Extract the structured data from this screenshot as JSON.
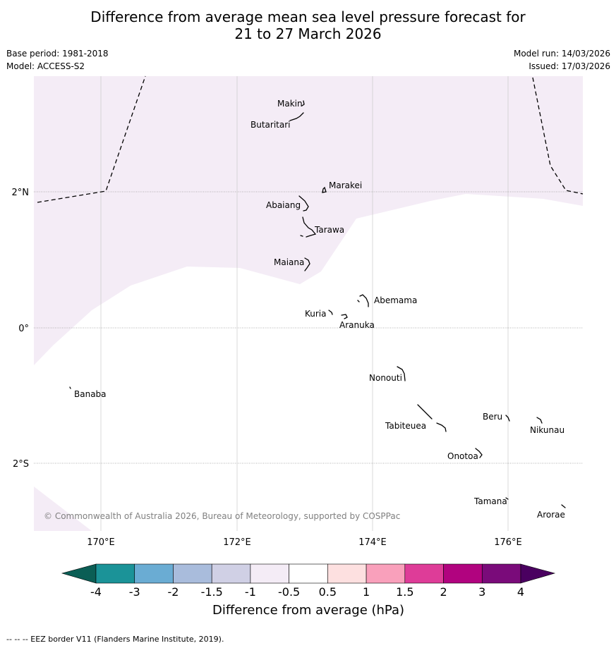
{
  "title_line1": "Difference from average mean sea level pressure forecast for",
  "title_line2": "21 to 27 March 2026",
  "base_period": "Base period: 1981-2018",
  "model": "Model: ACCESS-S2",
  "model_run": "Model run: 14/03/2026",
  "issued": "Issued: 17/03/2026",
  "copyright": "© Commonwealth of Australia 2026, Bureau of Meteorology, supported by COSPPac",
  "footer": "-- -- -- EEZ border V11 (Flanders Marine Institute, 2019).",
  "lon_ticks": [
    "170°E",
    "172°E",
    "174°E",
    "176°E"
  ],
  "lat_ticks": [
    "2°N",
    "0°",
    "2°S"
  ],
  "islands": {
    "makin": "Makin",
    "butaritari": "Butaritari",
    "marakei": "Marakei",
    "abaiang": "Abaiang",
    "tarawa": "Tarawa",
    "maiana": "Maiana",
    "abemama": "Abemama",
    "kuria": "Kuria",
    "aranuka": "Aranuka",
    "banaba": "Banaba",
    "nonouti": "Nonouti",
    "tabiteuea": "Tabiteuea",
    "beru": "Beru",
    "nikunau": "Nikunau",
    "onotoa": "Onotoa",
    "tamana": "Tamana",
    "arorae": "Arorae"
  },
  "colorbar": {
    "label": "Difference from average (hPa)",
    "ticks": [
      "-4",
      "-3",
      "-2",
      "-1.5",
      "-1",
      "-0.5",
      "0.5",
      "1",
      "1.5",
      "2",
      "3",
      "4"
    ],
    "colors": {
      "under": "#0b5e55",
      "c1": "#1b9398",
      "c2": "#6aacd3",
      "c3": "#a9bcdc",
      "c4": "#d0d0e5",
      "c5": "#f4ecf6",
      "c6": "#ffffff",
      "c7": "#fde0e0",
      "c8": "#f9a0bb",
      "c9": "#de3c98",
      "c10": "#b1037f",
      "c11": "#7a0b7a",
      "over": "#4a0060"
    }
  }
}
